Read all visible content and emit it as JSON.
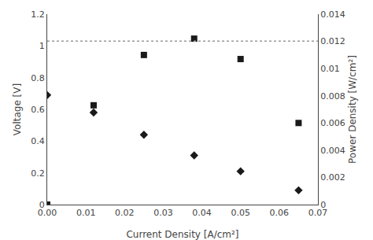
{
  "chart_data": {
    "type": "scatter",
    "xlabel": "Current Density [A/cm²]",
    "ylabel": "Voltage [V]",
    "y2label": "Power Density [W/cm²]",
    "grid": false,
    "series": [
      {
        "type": "scatter",
        "x": [
          0,
          0.012,
          0.025,
          0.038,
          0.05,
          0.065
        ],
        "values": [
          0.69,
          0.58,
          0.44,
          0.31,
          0.21,
          0.09
        ],
        "color": "#1a1a1a",
        "marker": "diamond"
      },
      {
        "type": "scatter",
        "axis": "y2",
        "x": [
          0,
          0.012,
          0.025,
          0.038,
          0.05,
          0.065
        ],
        "values": [
          0,
          0.0073,
          0.011,
          0.0122,
          0.0107,
          0.006
        ],
        "color": "#1a1a1a",
        "marker": "square"
      },
      {
        "type": "hline",
        "values": [
          1.03
        ],
        "color": "#999999",
        "line_style": "dotted"
      }
    ],
    "xlim": [
      0,
      0.07
    ],
    "xticks": [
      {
        "value": 0,
        "label": "0.00"
      },
      0.01,
      0.02,
      0.03,
      0.04,
      0.05,
      0.06,
      0.07
    ],
    "ylim": [
      0,
      1.2
    ],
    "yticks": [
      0,
      0.2,
      0.4,
      0.6,
      0.8,
      1,
      1.2
    ],
    "y2lim": [
      0,
      0.014
    ],
    "y2ticks": [
      0,
      0.002,
      0.004,
      0.006,
      0.008,
      0.01,
      0.012,
      0.014
    ]
  }
}
